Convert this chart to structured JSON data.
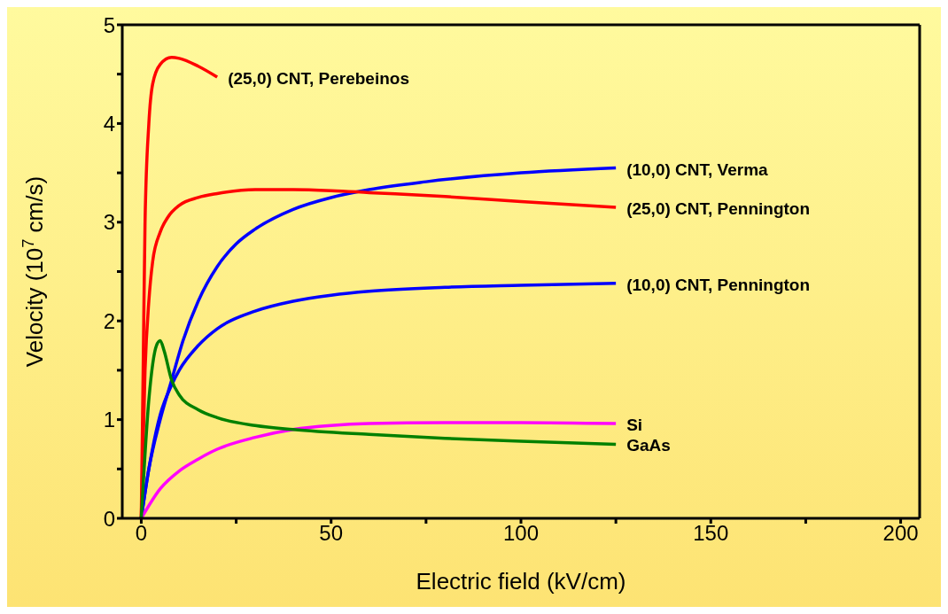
{
  "chart_data": {
    "type": "line",
    "xlabel": "Electric field (kV/cm)",
    "ylabel": "Velocity (10$^{7}$ cm/s)",
    "xlim": [
      -5,
      205
    ],
    "xticks": [
      0,
      {
        "value": 25,
        "label": null
      },
      50,
      {
        "value": 75,
        "label": null
      },
      100,
      {
        "value": 125,
        "label": null
      },
      150,
      {
        "value": 175,
        "label": null
      },
      200
    ],
    "ylim": [
      0,
      5
    ],
    "yticks": [
      0,
      {
        "value": 0.5,
        "label": null
      },
      1,
      {
        "value": 1.5,
        "label": null
      },
      2,
      {
        "value": 2.5,
        "label": null
      },
      3,
      {
        "value": 3.5,
        "label": null
      },
      4,
      {
        "value": 4.5,
        "label": null
      },
      5
    ],
    "grid": false,
    "legend": false,
    "marker": "none",
    "line_style": "solid",
    "series": [
      {
        "name": "(25,0) CNT, Perebeinos",
        "color": "#ff0000",
        "x": [
          0,
          0.5,
          1,
          2,
          3,
          5,
          8,
          10,
          15,
          20
        ],
        "values": [
          0,
          1.5,
          3.0,
          4.0,
          4.4,
          4.6,
          4.67,
          4.66,
          4.58,
          4.47
        ]
      },
      {
        "name": "(10,0) CNT, Verma",
        "color": "#0000ff",
        "x": [
          0,
          2,
          5,
          8,
          11,
          15,
          20,
          25,
          30,
          40,
          50,
          60,
          75,
          100,
          125
        ],
        "values": [
          0,
          0.5,
          1.0,
          1.4,
          1.8,
          2.2,
          2.55,
          2.78,
          2.93,
          3.13,
          3.25,
          3.33,
          3.41,
          3.5,
          3.55
        ]
      },
      {
        "name": "(25,0) CNT, Pennington",
        "color": "#ff0000",
        "x": [
          0,
          1,
          2,
          3,
          5,
          7,
          10,
          15,
          20,
          30,
          40,
          50,
          60,
          80,
          100,
          125
        ],
        "values": [
          0,
          1.5,
          2.2,
          2.6,
          2.9,
          3.05,
          3.17,
          3.25,
          3.29,
          3.33,
          3.33,
          3.32,
          3.3,
          3.26,
          3.21,
          3.15
        ]
      },
      {
        "name": "(10,0) CNT, Pennington",
        "color": "#0000ff",
        "x": [
          0,
          2,
          5,
          8,
          10,
          15,
          20,
          30,
          40,
          50,
          60,
          80,
          100,
          125
        ],
        "values": [
          0,
          0.5,
          1.05,
          1.35,
          1.5,
          1.75,
          1.92,
          2.1,
          2.2,
          2.26,
          2.3,
          2.34,
          2.36,
          2.38
        ]
      },
      {
        "name": "Si",
        "color": "#ff00ff",
        "x": [
          0,
          5,
          10,
          15,
          20,
          30,
          40,
          50,
          60,
          80,
          100,
          125
        ],
        "values": [
          0,
          0.3,
          0.48,
          0.6,
          0.7,
          0.82,
          0.9,
          0.94,
          0.96,
          0.97,
          0.97,
          0.96
        ]
      },
      {
        "name": "GaAs",
        "color": "#008000",
        "x": [
          0,
          2,
          4,
          5,
          6,
          8,
          10,
          15,
          20,
          30,
          40,
          60,
          80,
          100,
          125
        ],
        "values": [
          0,
          1.2,
          1.75,
          1.8,
          1.7,
          1.4,
          1.25,
          1.1,
          1.02,
          0.94,
          0.9,
          0.85,
          0.81,
          0.78,
          0.75
        ]
      }
    ]
  }
}
